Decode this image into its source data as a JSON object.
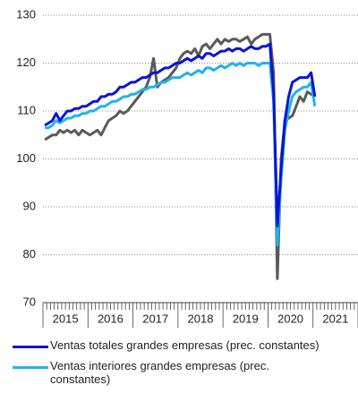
{
  "chart_data": {
    "type": "line",
    "categories": [
      null,
      null,
      null,
      null,
      null,
      "2015",
      null,
      null,
      null,
      null,
      null,
      null,
      null,
      null,
      null,
      null,
      null,
      "2016",
      null,
      null,
      null,
      null,
      null,
      null,
      null,
      null,
      null,
      null,
      null,
      "2017",
      null,
      null,
      null,
      null,
      null,
      null,
      null,
      null,
      null,
      null,
      null,
      "2018",
      null,
      null,
      null,
      null,
      null,
      null,
      null,
      null,
      null,
      null,
      null,
      "2019",
      null,
      null,
      null,
      null,
      null,
      null,
      null,
      null,
      null,
      null,
      null,
      "2020",
      null,
      null,
      null,
      null,
      null,
      null,
      null,
      null,
      null,
      null,
      null,
      "2021",
      null,
      null,
      null,
      null,
      null,
      null
    ],
    "series": [
      {
        "name": "Ventas totales grandes empresas (prec. constantes)",
        "color": "#0a14d2",
        "values": [
          107,
          107.5,
          108,
          109.5,
          108,
          109,
          110,
          110,
          110.5,
          110.5,
          111,
          111,
          111.5,
          112,
          112,
          113,
          113,
          113.5,
          113.5,
          114,
          115,
          115,
          115.5,
          116,
          116,
          116.5,
          117,
          117,
          117.5,
          118,
          118,
          118.5,
          119,
          119,
          119.5,
          120,
          120,
          120.5,
          121,
          120.5,
          121,
          121.5,
          121,
          122,
          122,
          121.5,
          122,
          122.5,
          122.5,
          123,
          122.5,
          123,
          123,
          122.5,
          123,
          123.5,
          123,
          123,
          123.5,
          123.5,
          124,
          114,
          86,
          98,
          108,
          113,
          116,
          116.5,
          117,
          117,
          117,
          118,
          113,
          null,
          null,
          null,
          null,
          null,
          null,
          null,
          null,
          null,
          null,
          null
        ]
      },
      {
        "name": "Ventas interiores grandes empresas (prec. constantes)",
        "color": "#1fb4ea",
        "values": [
          106.5,
          106.5,
          107,
          108,
          107.5,
          108,
          108.5,
          108.5,
          109,
          109,
          109.5,
          109.5,
          110,
          110,
          110.5,
          111,
          111,
          111.5,
          112,
          112,
          112.5,
          113,
          113,
          113.5,
          113.5,
          114,
          114.5,
          114.5,
          115,
          115,
          115.5,
          116,
          116,
          116.5,
          117,
          117,
          117,
          117.5,
          118,
          117.5,
          118,
          118.5,
          118,
          119,
          119,
          118.5,
          119,
          119.5,
          119,
          119.5,
          120,
          119.5,
          120,
          119.5,
          120,
          120,
          120,
          119.5,
          120,
          120,
          120,
          112,
          82,
          96,
          106,
          110,
          113,
          114,
          114.5,
          115,
          115,
          116,
          111,
          null,
          null,
          null,
          null,
          null,
          null,
          null,
          null,
          null,
          null,
          null
        ]
      },
      {
        "color": "#5a5a5a",
        "values": [
          104,
          104.5,
          105,
          105,
          106,
          105.5,
          106,
          105.5,
          106,
          105,
          106,
          105.5,
          105,
          105.5,
          106,
          105,
          106.5,
          108,
          108.5,
          109,
          110,
          109.5,
          110,
          111,
          112,
          113,
          114,
          115,
          117,
          121,
          115,
          116,
          116.5,
          117,
          118,
          119,
          121,
          122,
          122.5,
          122,
          123,
          121.5,
          123.5,
          124,
          123,
          124,
          125,
          124,
          125,
          124.5,
          125,
          125,
          124.5,
          125,
          125.5,
          124,
          125,
          125.5,
          126,
          126,
          126,
          118,
          75,
          100,
          108,
          108.5,
          109,
          111,
          113,
          112,
          114,
          113.5,
          113,
          null,
          null,
          null,
          null,
          null,
          null,
          null,
          null,
          null,
          null,
          null
        ]
      }
    ],
    "ylim": [
      70,
      130
    ],
    "yticks": [
      70,
      80,
      90,
      100,
      110,
      120,
      130
    ],
    "grid": true
  }
}
